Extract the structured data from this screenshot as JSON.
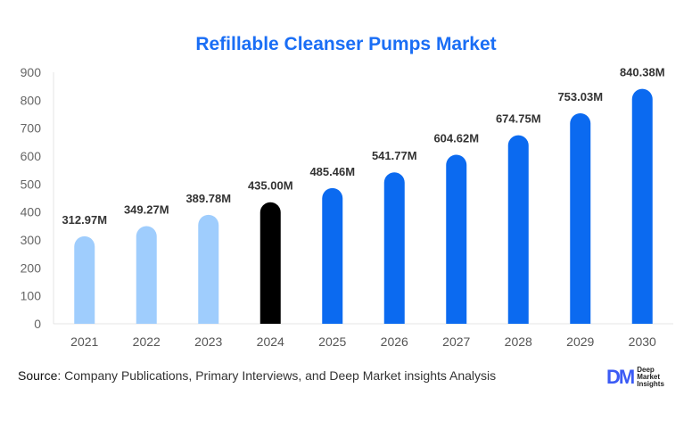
{
  "chart_data": {
    "type": "bar",
    "title": "Refillable Cleanser Pumps Market",
    "categories": [
      "2021",
      "2022",
      "2023",
      "2024",
      "2025",
      "2026",
      "2027",
      "2028",
      "2029",
      "2030"
    ],
    "values": [
      312.97,
      349.27,
      389.78,
      435.0,
      485.46,
      541.77,
      604.62,
      674.75,
      753.03,
      840.38
    ],
    "data_labels": [
      "312.97M",
      "349.27M",
      "389.78M",
      "435.00M",
      "485.46M",
      "541.77M",
      "604.62M",
      "674.75M",
      "753.03M",
      "840.38M"
    ],
    "bar_colors": [
      "#9fcdfd",
      "#9fcdfd",
      "#9fcdfd",
      "#000000",
      "#0b6af0",
      "#0b6af0",
      "#0b6af0",
      "#0b6af0",
      "#0b6af0",
      "#0b6af0"
    ],
    "ylim": [
      0,
      900
    ],
    "yticks": [
      0,
      100,
      200,
      300,
      400,
      500,
      600,
      700,
      800,
      900
    ],
    "xlabel": "",
    "ylabel": "",
    "grid": false,
    "legend": "none"
  },
  "title_color": "#1a6ef5",
  "source": {
    "label": "Source",
    "text": ": Company Publications, Primary Interviews, and Deep Market insights Analysis"
  },
  "logo": {
    "mark": "DM",
    "lines": [
      "Deep",
      "Market",
      "Insights"
    ]
  }
}
